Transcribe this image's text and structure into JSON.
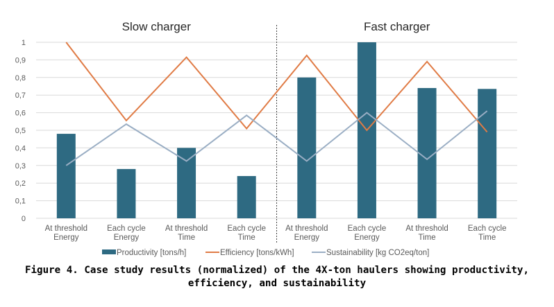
{
  "chart_data": {
    "type": "bar",
    "groups": [
      {
        "label": "Slow charger",
        "categories": [
          0,
          1,
          2,
          3
        ]
      },
      {
        "label": "Fast charger",
        "categories": [
          4,
          5,
          6,
          7
        ]
      }
    ],
    "categories": [
      [
        "At threshold",
        "Energy"
      ],
      [
        "Each cycle",
        "Energy"
      ],
      [
        "At threshold",
        "Time"
      ],
      [
        "Each cycle",
        "Time"
      ],
      [
        "At threshold",
        "Energy"
      ],
      [
        "Each cycle",
        "Energy"
      ],
      [
        "At threshold",
        "Time"
      ],
      [
        "Each cycle",
        "Time"
      ]
    ],
    "ylim": [
      0,
      1
    ],
    "yticks": [
      "0",
      "0,1",
      "0,2",
      "0,3",
      "0,4",
      "0,5",
      "0,6",
      "0,7",
      "0,8",
      "0,9",
      "1"
    ],
    "grid": true,
    "legend_position": "bottom",
    "series": [
      {
        "name": "Productivity [tons/h]",
        "type": "bar",
        "color": "#2e6a82",
        "values": [
          0.48,
          0.28,
          0.4,
          0.24,
          0.8,
          1.0,
          0.74,
          0.735
        ]
      },
      {
        "name": "Efficiency [tons/kWh]",
        "type": "line",
        "color": "#e07b45",
        "values": [
          1.0,
          0.555,
          0.915,
          0.51,
          0.925,
          0.5,
          0.89,
          0.49
        ]
      },
      {
        "name": "Sustainability [kg CO2eq/ton]",
        "type": "line",
        "color": "#9aaec4",
        "values": [
          0.3,
          0.535,
          0.325,
          0.585,
          0.325,
          0.6,
          0.335,
          0.61
        ]
      }
    ]
  },
  "caption": {
    "line1": "Figure 4.  Case study results (normalized) of the 4X-ton haulers showing productivity,",
    "line2": "efficiency, and sustainability"
  }
}
